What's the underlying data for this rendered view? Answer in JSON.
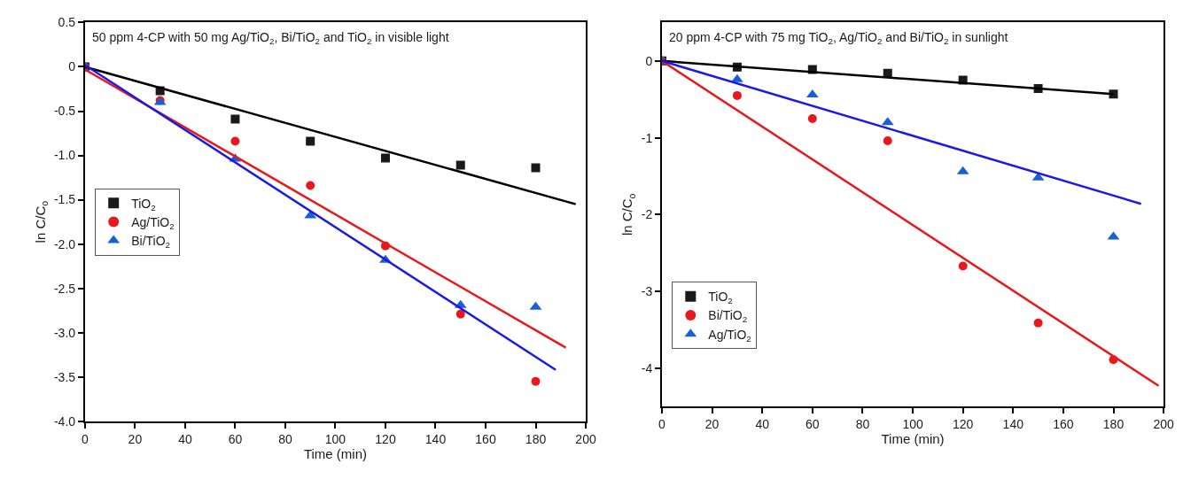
{
  "chart_data": [
    {
      "type": "scatter",
      "title": "50 ppm 4-CP with 50 mg Ag/TiO$_{2}$, Bi/TiO$_{2}$ and TiO$_{2}$ in visible light",
      "xlabel": "Time (min)",
      "ylabel": "ln C/C$_{o}$",
      "x": [
        0,
        30,
        60,
        90,
        120,
        150,
        180
      ],
      "series": [
        {
          "name": "TiO$_{2}$",
          "color": "#1a1a1a",
          "marker": "square",
          "values": [
            0,
            -0.27,
            -0.59,
            -0.84,
            -1.03,
            -1.11,
            -1.14
          ]
        },
        {
          "name": "Ag/TiO$_{2}$",
          "color": "#e8191c",
          "marker": "circle",
          "values": [
            0,
            -0.38,
            -0.84,
            -1.34,
            -2.02,
            -2.79,
            -3.55
          ]
        },
        {
          "name": "Bi/TiO$_{2}$",
          "color": "#1a5fd6",
          "marker": "triangle",
          "values": [
            0,
            -0.4,
            -1.04,
            -1.68,
            -2.18,
            -2.69,
            -2.71
          ]
        },
        {
          "type": "line",
          "color": "#000000",
          "marker": "none",
          "x": [
            0,
            196
          ],
          "values": [
            0,
            -1.55
          ]
        },
        {
          "type": "line",
          "color": "#e8191c",
          "marker": "none",
          "x": [
            0,
            192
          ],
          "values": [
            -0.03,
            -3.17
          ]
        },
        {
          "type": "line",
          "color": "#1a1ae8",
          "marker": "none",
          "x": [
            0,
            188
          ],
          "values": [
            0.02,
            -3.42
          ]
        }
      ],
      "xlim": [
        0,
        200
      ],
      "xticks": [
        0,
        20,
        40,
        60,
        80,
        100,
        120,
        140,
        160,
        180,
        200
      ],
      "ylim": [
        -4,
        0.5
      ],
      "yticks": [
        {
          "value": -4,
          "label": "-4.0"
        },
        -3.5,
        {
          "value": -3,
          "label": "-3.0"
        },
        -2.5,
        {
          "value": -2,
          "label": "-2.0"
        },
        -1.5,
        {
          "value": -1,
          "label": "-1.0"
        },
        -0.5,
        0,
        0.5
      ],
      "legend": "left"
    },
    {
      "type": "scatter",
      "title": "20 ppm 4-CP with 75 mg TiO$_{2}$, Ag/TiO$_{2}$ and Bi/TiO$_{2}$ in sunlight",
      "xlabel": "Time (min)",
      "ylabel": "ln C/C$_{o}$",
      "x": [
        0,
        30,
        60,
        90,
        120,
        150,
        180
      ],
      "series": [
        {
          "name": "TiO$_{2}$",
          "color": "#1a1a1a",
          "marker": "square",
          "values": [
            0,
            -0.08,
            -0.11,
            -0.16,
            -0.25,
            -0.36,
            -0.43
          ]
        },
        {
          "name": "Bi/TiO$_{2}$",
          "color": "#e8191c",
          "marker": "circle",
          "values": [
            0,
            -0.45,
            -0.75,
            -1.04,
            -2.67,
            -3.41,
            -3.89
          ]
        },
        {
          "name": "Ag/TiO$_{2}$",
          "color": "#1a5fd6",
          "marker": "triangle",
          "values": [
            0,
            -0.24,
            -0.44,
            -0.8,
            -1.44,
            -1.52,
            -2.29
          ]
        },
        {
          "type": "line",
          "color": "#000000",
          "marker": "none",
          "x": [
            0,
            180
          ],
          "values": [
            0,
            -0.43
          ]
        },
        {
          "type": "line",
          "color": "#e8191c",
          "marker": "none",
          "x": [
            0,
            198
          ],
          "values": [
            0,
            -4.23
          ]
        },
        {
          "type": "line",
          "color": "#1a1ae8",
          "marker": "none",
          "x": [
            0,
            191
          ],
          "values": [
            0,
            -1.86
          ]
        }
      ],
      "xlim": [
        0,
        200
      ],
      "xticks": [
        0,
        20,
        40,
        60,
        80,
        100,
        120,
        140,
        160,
        180,
        200
      ],
      "ylim": [
        -4.5,
        0.5
      ],
      "yticks": [
        -4,
        -3,
        -2,
        -1,
        0
      ],
      "legend": "bottom left"
    }
  ]
}
